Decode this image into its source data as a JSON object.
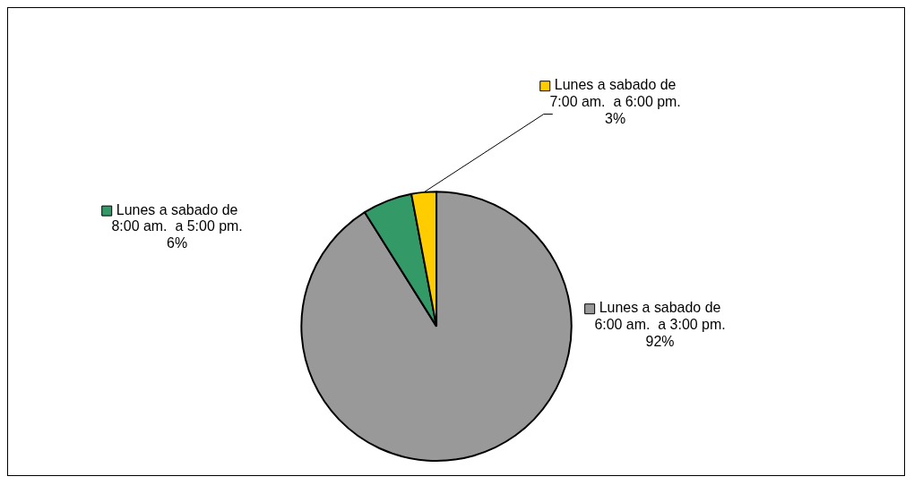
{
  "chart_data": {
    "type": "pie",
    "categories": [
      "Lunes a sabado de 6:00 am.  a 3:00 pm.",
      "Lunes a sabado de 8:00 am.  a 5:00 pm.",
      "Lunes a sabado de 7:00 am.  a 6:00 pm."
    ],
    "values": [
      92,
      6,
      3
    ],
    "colors": [
      "#999999",
      "#339966",
      "#ffcc00"
    ],
    "value_labels": [
      "92%",
      "6%",
      "3%"
    ],
    "legend": "top left"
  }
}
